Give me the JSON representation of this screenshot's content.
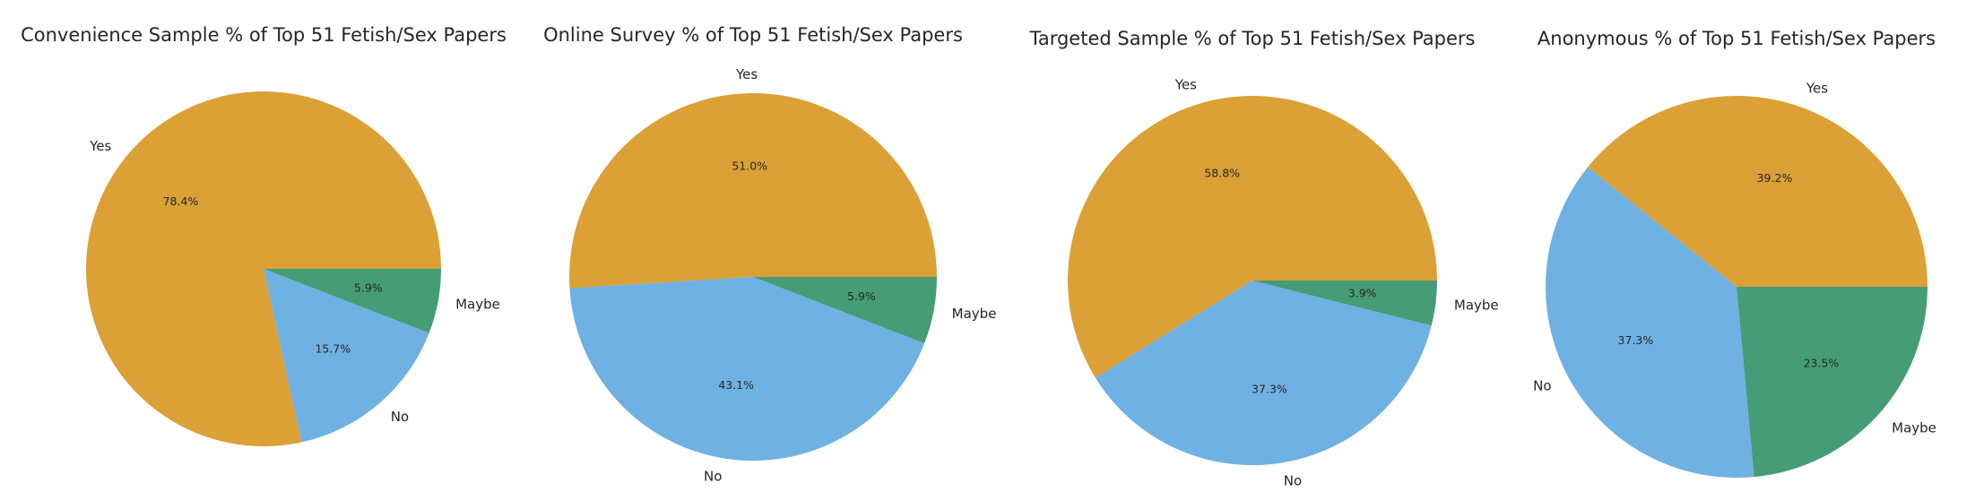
{
  "chart_data": [
    {
      "type": "pie",
      "title": "Convenience Sample % of Top 51 Fetish/Sex Papers",
      "categories": [
        "Yes",
        "No",
        "Maybe"
      ],
      "values": [
        40,
        8,
        3
      ],
      "percent_labels": [
        "78.4%",
        "15.7%",
        "5.9%"
      ],
      "colors": [
        "#DBA036",
        "#6FB1E2",
        "#459C76"
      ],
      "start_angle_deg": 0,
      "direction": "counterclockwise"
    },
    {
      "type": "pie",
      "title": "Online Survey % of Top 51 Fetish/Sex Papers",
      "categories": [
        "Yes",
        "No",
        "Maybe"
      ],
      "values": [
        26,
        22,
        3
      ],
      "percent_labels": [
        "51.0%",
        "43.1%",
        "5.9%"
      ],
      "colors": [
        "#DBA036",
        "#6FB1E2",
        "#459C76"
      ],
      "start_angle_deg": 0,
      "direction": "counterclockwise"
    },
    {
      "type": "pie",
      "title": "Targeted Sample % of Top 51 Fetish/Sex Papers",
      "categories": [
        "Yes",
        "No",
        "Maybe"
      ],
      "values": [
        30,
        19,
        2
      ],
      "percent_labels": [
        "58.8%",
        "37.3%",
        "3.9%"
      ],
      "colors": [
        "#DBA036",
        "#6FB1E2",
        "#459C76"
      ],
      "start_angle_deg": 0,
      "direction": "counterclockwise"
    },
    {
      "type": "pie",
      "title": "Anonymous % of Top 51 Fetish/Sex Papers",
      "categories": [
        "Yes",
        "No",
        "Maybe"
      ],
      "values": [
        20,
        19,
        12
      ],
      "percent_labels": [
        "39.2%",
        "37.3%",
        "23.5%"
      ],
      "colors": [
        "#DBA036",
        "#6FB1E2",
        "#459C76"
      ],
      "start_angle_deg": 0,
      "direction": "counterclockwise"
    }
  ]
}
